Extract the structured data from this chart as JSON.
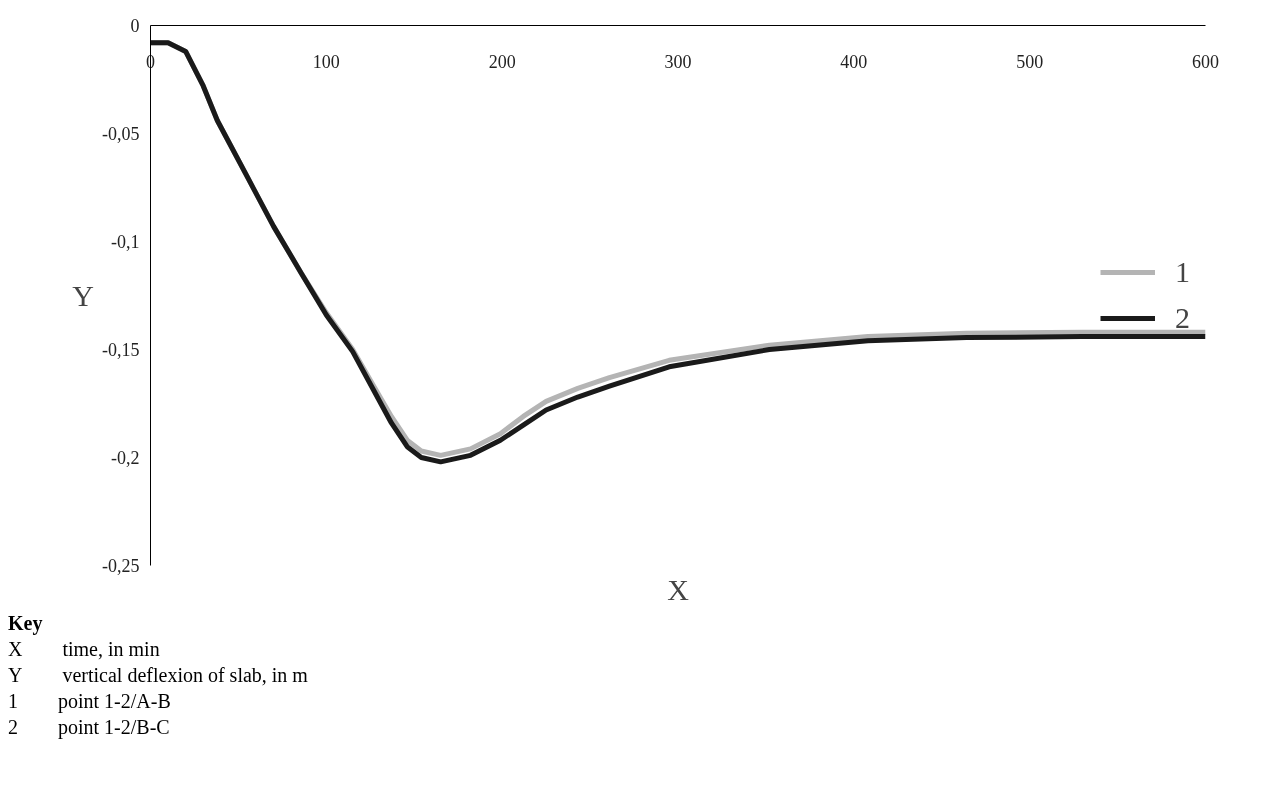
{
  "chart_data": {
    "type": "line",
    "xlabel": "X",
    "ylabel": "Y",
    "xlim": [
      0,
      600
    ],
    "ylim": [
      -0.25,
      0
    ],
    "xticks": [
      0,
      100,
      200,
      300,
      400,
      500,
      600
    ],
    "yticks": [
      0,
      {
        "value": -0.05,
        "label": "-0,05"
      },
      {
        "value": -0.1,
        "label": "-0,1"
      },
      {
        "value": -0.15,
        "label": "-0,15"
      },
      {
        "value": -0.2,
        "label": "-0,2"
      },
      {
        "value": -0.25,
        "label": "-0,25"
      }
    ],
    "grid": false,
    "legend": "center right",
    "marker": "none",
    "line_style": "solid",
    "x": [
      0,
      10,
      20,
      30,
      38,
      55,
      70,
      86,
      100,
      115,
      127,
      137,
      146,
      154,
      165,
      182,
      199,
      212,
      225,
      243,
      261,
      295,
      352,
      408,
      464,
      530,
      600
    ],
    "series": [
      {
        "name": "1",
        "color": "#b4b4b4",
        "values": [
          -0.008,
          -0.008,
          -0.012,
          -0.028,
          -0.044,
          -0.07,
          -0.093,
          -0.115,
          -0.133,
          -0.15,
          -0.167,
          -0.181,
          -0.192,
          -0.197,
          -0.199,
          -0.196,
          -0.189,
          -0.181,
          -0.174,
          -0.168,
          -0.163,
          -0.155,
          -0.148,
          -0.144,
          -0.1425,
          -0.142,
          -0.142
        ]
      },
      {
        "name": "2",
        "color": "#1a1a1a",
        "values": [
          -0.008,
          -0.008,
          -0.012,
          -0.028,
          -0.044,
          -0.07,
          -0.093,
          -0.115,
          -0.134,
          -0.151,
          -0.169,
          -0.184,
          -0.195,
          -0.2,
          -0.202,
          -0.199,
          -0.192,
          -0.185,
          -0.178,
          -0.172,
          -0.167,
          -0.158,
          -0.15,
          -0.146,
          -0.1445,
          -0.144,
          -0.144
        ]
      }
    ],
    "annotations": [
      "Key",
      "X  time, in min",
      "Y  vertical deflexion of slab, in m",
      "1  point 1-2/A-B",
      "2  point 1-2/B-C"
    ]
  }
}
